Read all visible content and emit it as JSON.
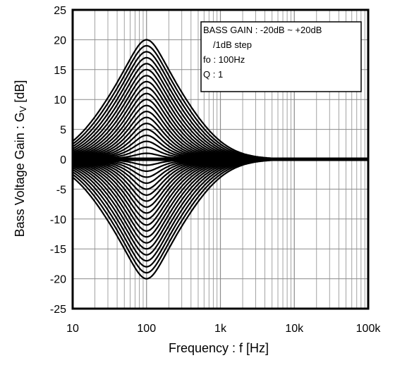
{
  "chart_data": {
    "type": "line",
    "title": "",
    "xlabel": "Frequency : f [Hz]",
    "ylabel": "Bass Voltage Gain : G",
    "ylabel_sub": "V",
    "ylabel_unit": " [dB]",
    "xscale": "log",
    "xlim": [
      10,
      100000
    ],
    "ylim": [
      -25,
      25
    ],
    "x_ticks": [
      10,
      100,
      1000,
      10000,
      100000
    ],
    "x_tick_labels": [
      "10",
      "100",
      "1k",
      "10k",
      "100k"
    ],
    "y_ticks": [
      25,
      20,
      15,
      10,
      5,
      0,
      -5,
      -10,
      -15,
      -20,
      -25
    ],
    "y_tick_labels": [
      "25",
      "20",
      "15",
      "10",
      "5",
      "0",
      "-5",
      "-10",
      "-15",
      "-20",
      "-25"
    ],
    "grid": true,
    "legend_position": "top-right",
    "legend_lines": [
      "BASS GAIN : -20dB  ~  +20dB",
      "/1dB step",
      "fo : 100Hz",
      "Q : 1"
    ],
    "center_frequency_hz": 100,
    "q": 1,
    "series": [
      {
        "gain_db": -20
      },
      {
        "gain_db": -19
      },
      {
        "gain_db": -18
      },
      {
        "gain_db": -17
      },
      {
        "gain_db": -16
      },
      {
        "gain_db": -15
      },
      {
        "gain_db": -14
      },
      {
        "gain_db": -13
      },
      {
        "gain_db": -12
      },
      {
        "gain_db": -11
      },
      {
        "gain_db": -10
      },
      {
        "gain_db": -9
      },
      {
        "gain_db": -8
      },
      {
        "gain_db": -7
      },
      {
        "gain_db": -6
      },
      {
        "gain_db": -5
      },
      {
        "gain_db": -4
      },
      {
        "gain_db": -3
      },
      {
        "gain_db": -2
      },
      {
        "gain_db": -1
      },
      {
        "gain_db": 0
      },
      {
        "gain_db": 1
      },
      {
        "gain_db": 2
      },
      {
        "gain_db": 3
      },
      {
        "gain_db": 4
      },
      {
        "gain_db": 5
      },
      {
        "gain_db": 6
      },
      {
        "gain_db": 7
      },
      {
        "gain_db": 8
      },
      {
        "gain_db": 9
      },
      {
        "gain_db": 10
      },
      {
        "gain_db": 11
      },
      {
        "gain_db": 12
      },
      {
        "gain_db": 13
      },
      {
        "gain_db": 14
      },
      {
        "gain_db": 15
      },
      {
        "gain_db": 16
      },
      {
        "gain_db": 17
      },
      {
        "gain_db": 18
      },
      {
        "gain_db": 19
      },
      {
        "gain_db": 20
      }
    ],
    "line_color": "#000000",
    "grid_color": "#8c8c8c"
  }
}
